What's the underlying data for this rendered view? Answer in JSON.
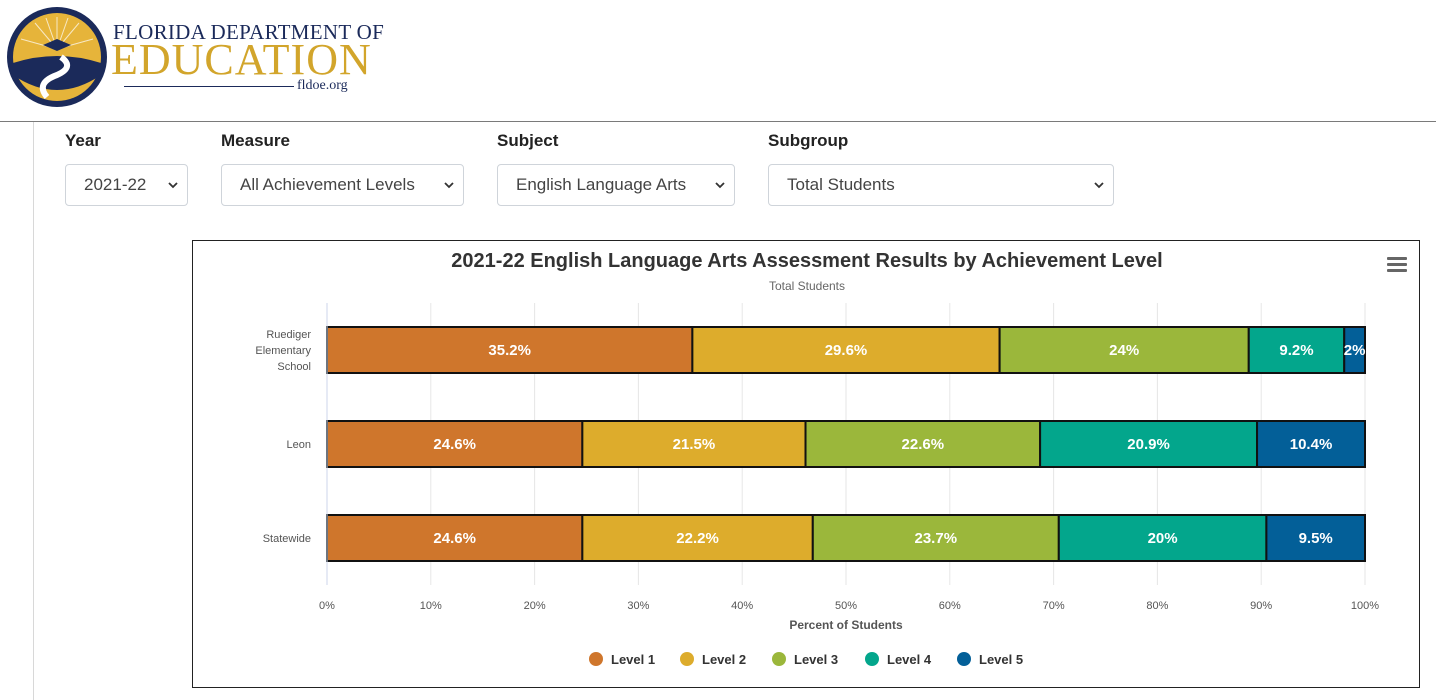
{
  "header": {
    "org_line1": "Florida Department of",
    "org_line2": "EDUCATION",
    "org_url": "fldoe.org"
  },
  "filters": [
    {
      "label": "Year",
      "value": "2021-22"
    },
    {
      "label": "Measure",
      "value": "All Achievement Levels"
    },
    {
      "label": "Subject",
      "value": "English Language Arts"
    },
    {
      "label": "Subgroup",
      "value": "Total Students"
    }
  ],
  "chart_data": {
    "type": "bar",
    "orientation": "horizontal",
    "stacked": true,
    "title": "2021-22 English Language Arts Assessment Results by Achievement Level",
    "subtitle": "Total Students",
    "xlabel": "Percent of Students",
    "ylabel": "",
    "xlim": [
      0,
      100
    ],
    "xticks": [
      "0%",
      "10%",
      "20%",
      "30%",
      "40%",
      "50%",
      "60%",
      "70%",
      "80%",
      "90%",
      "100%"
    ],
    "categories": [
      "Ruediger Elementary School",
      "Leon",
      "Statewide"
    ],
    "category_lines": [
      [
        "Ruediger",
        "Elementary",
        "School"
      ],
      [
        "Leon"
      ],
      [
        "Statewide"
      ]
    ],
    "series": [
      {
        "name": "Level 1",
        "color": "#cf762c",
        "values": [
          35.2,
          24.6,
          24.6
        ]
      },
      {
        "name": "Level 2",
        "color": "#ddac2c",
        "values": [
          29.6,
          21.5,
          22.2
        ]
      },
      {
        "name": "Level 3",
        "color": "#9bb73b",
        "values": [
          24.0,
          22.6,
          23.7
        ]
      },
      {
        "name": "Level 4",
        "color": "#03a68c",
        "values": [
          9.2,
          20.9,
          20.0
        ]
      },
      {
        "name": "Level 5",
        "color": "#035f98",
        "values": [
          2.0,
          10.4,
          9.5
        ]
      }
    ],
    "data_labels": [
      [
        "35.2%",
        "29.6%",
        "24%",
        "9.2%",
        "2%"
      ],
      [
        "24.6%",
        "21.5%",
        "22.6%",
        "20.9%",
        "10.4%"
      ],
      [
        "24.6%",
        "22.2%",
        "23.7%",
        "20%",
        "9.5%"
      ]
    ],
    "grid": true,
    "legend_position": "bottom-center"
  }
}
